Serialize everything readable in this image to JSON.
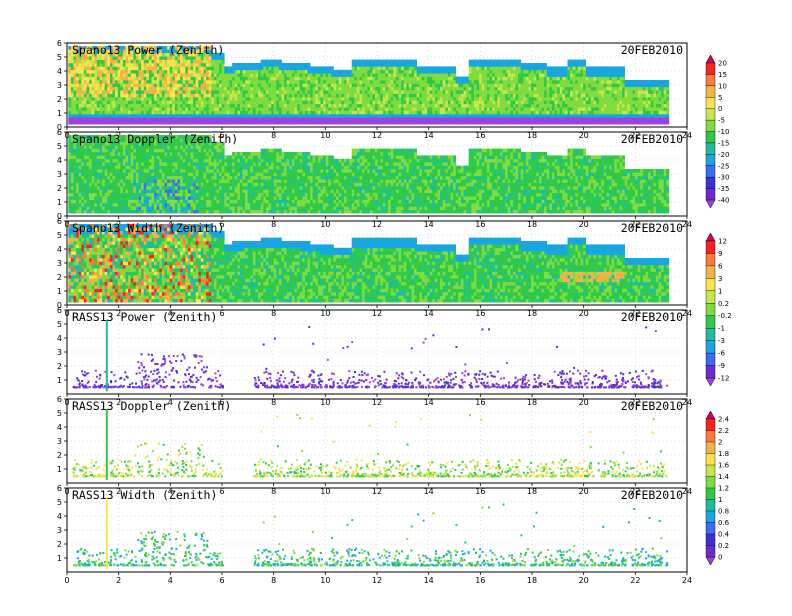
{
  "date_label": "20FEB2010",
  "chart_data": [
    {
      "type": "heatmap",
      "title": "Spano13 Power (Zenith)",
      "date": "20FEB2010",
      "xlim": [
        0,
        24
      ],
      "ylim": [
        0,
        6
      ],
      "x_ticks": [
        0,
        2,
        4,
        6,
        8,
        10,
        12,
        14,
        16,
        18,
        20,
        22,
        24
      ],
      "y_ticks": [
        0,
        1,
        2,
        3,
        4,
        5,
        6
      ],
      "colorbar_group": 0
    },
    {
      "type": "heatmap",
      "title": "Spano13 Doppler (Zenith)",
      "date": "20FEB2010",
      "xlim": [
        0,
        24
      ],
      "ylim": [
        0,
        6
      ],
      "x_ticks": [
        0,
        2,
        4,
        6,
        8,
        10,
        12,
        14,
        16,
        18,
        20,
        22,
        24
      ],
      "y_ticks": [
        0,
        1,
        2,
        3,
        4,
        5,
        6
      ],
      "colorbar_group": 0
    },
    {
      "type": "heatmap",
      "title": "Spano13 Width (Zenith)",
      "date": "20FEB2010",
      "xlim": [
        0,
        24
      ],
      "ylim": [
        0,
        6
      ],
      "x_ticks": [
        0,
        2,
        4,
        6,
        8,
        10,
        12,
        14,
        16,
        18,
        20,
        22,
        24
      ],
      "y_ticks": [
        0,
        1,
        2,
        3,
        4,
        5,
        6
      ],
      "colorbar_group": 1
    },
    {
      "type": "heatmap",
      "title": "RASS13 Power (Zenith)",
      "date": "20FEB2010",
      "xlim": [
        0,
        24
      ],
      "ylim": [
        0,
        6
      ],
      "x_ticks": [
        0,
        2,
        4,
        6,
        8,
        10,
        12,
        14,
        16,
        18,
        20,
        22,
        24
      ],
      "y_ticks": [
        1,
        2,
        3,
        4,
        5,
        6
      ],
      "colorbar_group": 1
    },
    {
      "type": "heatmap",
      "title": "RASS13 Doppler (Zenith)",
      "date": "20FEB2010",
      "xlim": [
        0,
        24
      ],
      "ylim": [
        0,
        6
      ],
      "x_ticks": [
        0,
        2,
        4,
        6,
        8,
        10,
        12,
        14,
        16,
        18,
        20,
        22,
        24
      ],
      "y_ticks": [
        1,
        2,
        3,
        4,
        5,
        6
      ],
      "colorbar_group": 2
    },
    {
      "type": "heatmap",
      "title": "RASS13 Width (Zenith)",
      "date": "20FEB2010",
      "xlim": [
        0,
        24
      ],
      "ylim": [
        0,
        6
      ],
      "x_ticks": [
        0,
        2,
        4,
        6,
        8,
        10,
        12,
        14,
        16,
        18,
        20,
        22,
        24
      ],
      "y_ticks": [
        1,
        2,
        3,
        4,
        5,
        6
      ],
      "colorbar_group": 2
    }
  ],
  "colorbars": [
    {
      "labels": [
        "20",
        "15",
        "10",
        "5",
        "0",
        "-5",
        "-10",
        "-15",
        "-20",
        "-25",
        "-30",
        "-35",
        "-40"
      ],
      "colors": [
        "#d7005f",
        "#ff2020",
        "#ff7a3c",
        "#f2b347",
        "#ffe34d",
        "#c8e64a",
        "#7fdc3c",
        "#2fc94a",
        "#1bbfa0",
        "#18a6e0",
        "#3c6cf0",
        "#3c33d6",
        "#6e2bd0",
        "#a040e0"
      ]
    },
    {
      "labels": [
        "12",
        "9",
        "6",
        "3",
        "1",
        "0.2",
        "-0.2",
        "-1",
        "-3",
        "-6",
        "-9",
        "-12"
      ],
      "colors": [
        "#d7005f",
        "#ff2020",
        "#ff7a3c",
        "#f2b347",
        "#ffe34d",
        "#c8e64a",
        "#7fdc3c",
        "#2fc94a",
        "#1bbfa0",
        "#18a6e0",
        "#3c6cf0",
        "#6e2bd0",
        "#a040e0"
      ]
    },
    {
      "labels": [
        "2.4",
        "2.2",
        "2",
        "1.8",
        "1.6",
        "1.4",
        "1.2",
        "1",
        "0.8",
        "0.6",
        "0.4",
        "0.2",
        "0"
      ],
      "colors": [
        "#d7005f",
        "#ff2020",
        "#ff7a3c",
        "#f2b347",
        "#ffe34d",
        "#c8e64a",
        "#7fdc3c",
        "#2fc94a",
        "#1bbfa0",
        "#18a6e0",
        "#3c6cf0",
        "#3c33d6",
        "#6e2bd0",
        "#a040e0"
      ]
    }
  ]
}
